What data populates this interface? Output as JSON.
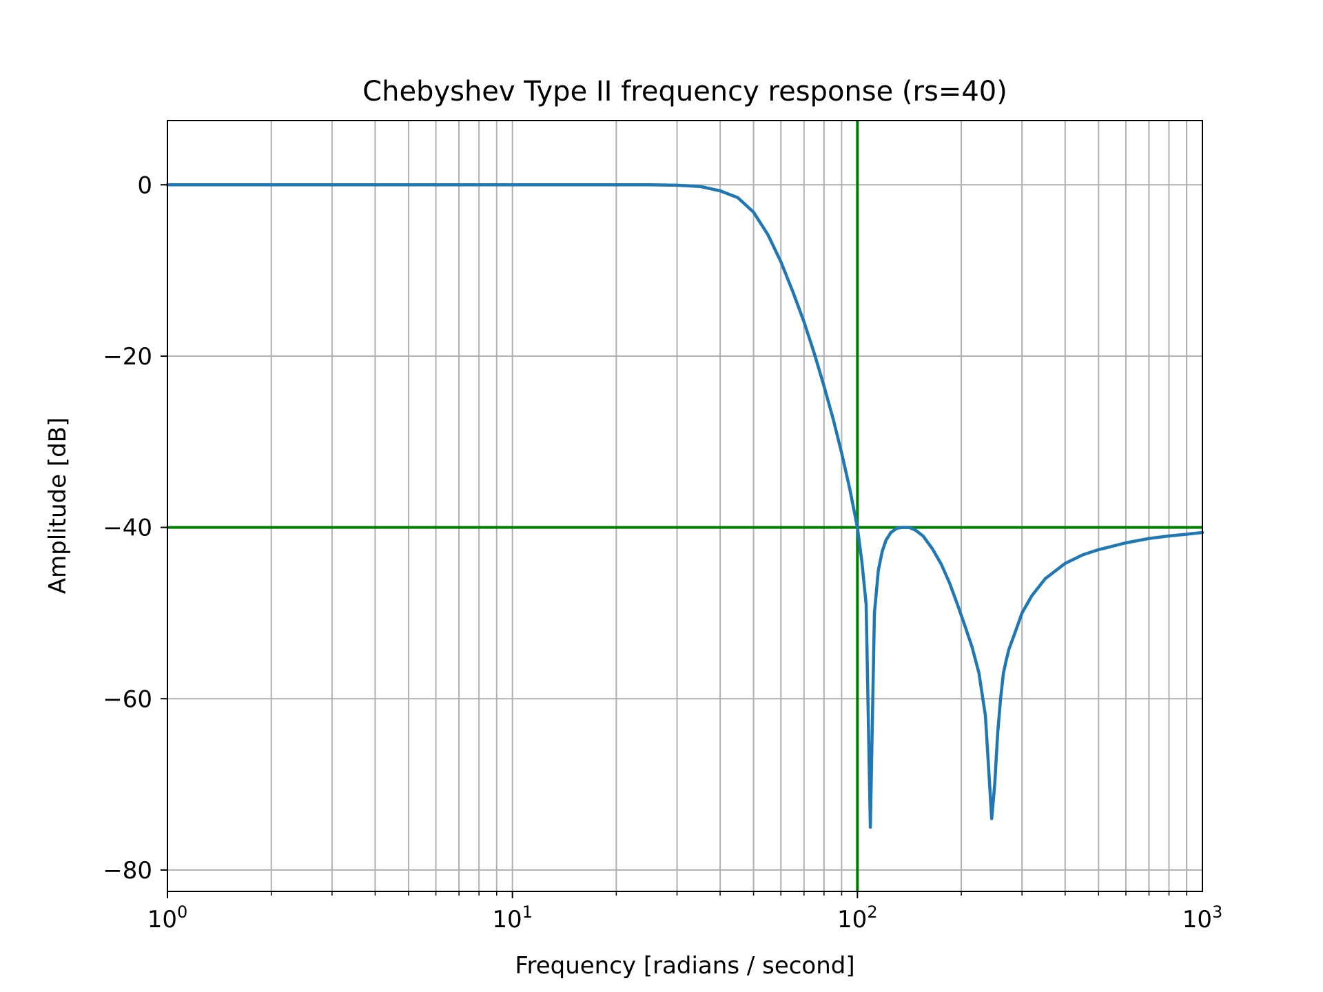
{
  "chart_data": {
    "type": "line",
    "title": "Chebyshev Type II frequency response (rs=40)",
    "xlabel": "Frequency [radians / second]",
    "ylabel": "Amplitude [dB]",
    "xscale": "log",
    "xlim": [
      1,
      1000
    ],
    "ylim": [
      -82.5,
      7.5
    ],
    "grid": true,
    "grid_which": "both",
    "x_ticks": [
      {
        "base": "10",
        "exp": "0",
        "value": 1
      },
      {
        "base": "10",
        "exp": "1",
        "value": 10
      },
      {
        "base": "10",
        "exp": "2",
        "value": 100
      },
      {
        "base": "10",
        "exp": "3",
        "value": 1000
      }
    ],
    "y_ticks": [
      {
        "label": "0",
        "value": 0
      },
      {
        "label": "−20",
        "value": -20
      },
      {
        "label": "−40",
        "value": -40
      },
      {
        "label": "−60",
        "value": -60
      },
      {
        "label": "−80",
        "value": -80
      }
    ],
    "series": [
      {
        "color": "#1f77b4",
        "x": [
          1,
          2,
          5,
          10,
          15,
          20,
          25,
          30,
          35,
          40,
          45,
          50,
          55,
          60,
          65,
          70,
          75,
          80,
          85,
          90,
          95,
          100,
          103,
          106,
          109,
          112,
          115,
          118,
          121,
          125,
          130,
          135,
          141,
          147,
          155,
          165,
          175,
          185,
          195,
          205,
          215,
          225,
          235,
          245,
          250,
          255,
          260,
          265,
          270,
          275,
          285,
          300,
          320,
          350,
          400,
          450,
          500,
          600,
          700,
          800,
          900,
          1000
        ],
        "y": [
          0,
          0,
          0,
          0,
          0,
          0,
          0,
          -0.05,
          -0.2,
          -0.7,
          -1.5,
          -3.2,
          -5.8,
          -9.0,
          -12.5,
          -16.0,
          -19.7,
          -23.5,
          -27.3,
          -31.3,
          -35.5,
          -40.0,
          -44.0,
          -49.0,
          -75.0,
          -50.0,
          -45.0,
          -42.8,
          -41.5,
          -40.6,
          -40.1,
          -40.0,
          -40.0,
          -40.3,
          -41.0,
          -42.5,
          -44.3,
          -46.5,
          -49.0,
          -51.5,
          -54.0,
          -57.0,
          -62.0,
          -74.0,
          -70.0,
          -64.0,
          -60.0,
          -57.0,
          -55.5,
          -54.2,
          -52.5,
          -50.0,
          -48.0,
          -46.0,
          -44.2,
          -43.2,
          -42.6,
          -41.8,
          -41.3,
          -41.0,
          -40.8,
          -40.6
        ]
      }
    ],
    "reference_lines": [
      {
        "orientation": "vertical",
        "x": 100,
        "color": "#008000"
      },
      {
        "orientation": "horizontal",
        "y": -40,
        "color": "#008000"
      }
    ]
  }
}
